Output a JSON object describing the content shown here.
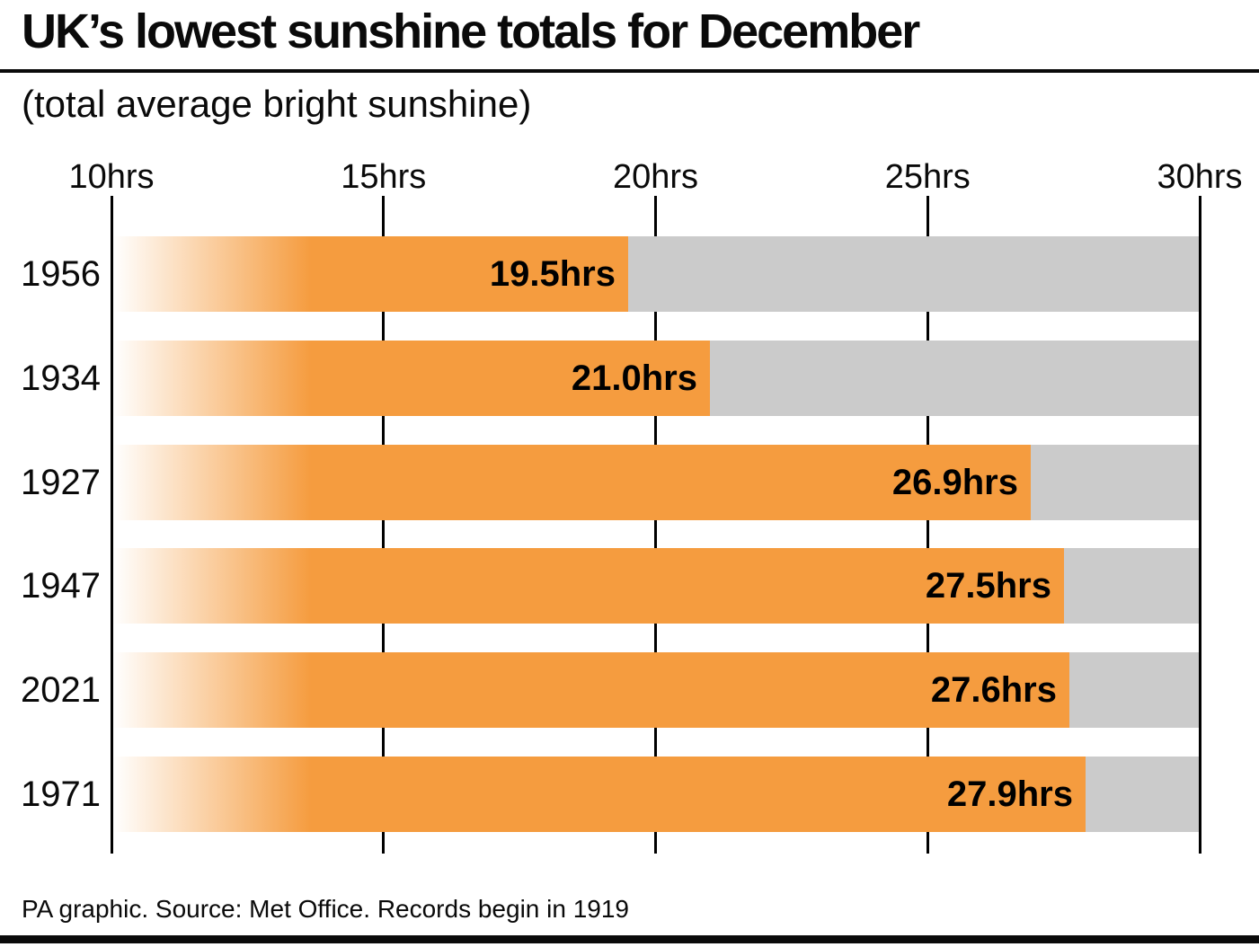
{
  "title": "UK’s lowest sunshine totals for December",
  "subtitle": "(total average bright sunshine)",
  "footer": "PA graphic. Source: Met Office. Records begin in 1919",
  "axis": {
    "tick_labels": [
      "10hrs",
      "15hrs",
      "20hrs",
      "25hrs",
      "30hrs"
    ],
    "tick_values": [
      10,
      15,
      20,
      25,
      30
    ]
  },
  "chart_data": {
    "type": "bar",
    "orientation": "horizontal",
    "title": "UK’s lowest sunshine totals for December",
    "subtitle": "(total average bright sunshine)",
    "categories": [
      "1956",
      "1934",
      "1927",
      "1947",
      "2021",
      "1971"
    ],
    "values": [
      19.5,
      21.0,
      26.9,
      27.5,
      27.6,
      27.9
    ],
    "value_labels": [
      "19.5hrs",
      "21.0hrs",
      "26.9hrs",
      "27.5hrs",
      "27.6hrs",
      "27.9hrs"
    ],
    "xlabel": "",
    "ylabel": "",
    "xlim": [
      10,
      30
    ],
    "grid": "vertical-ticks",
    "legend": "none",
    "unit": "hrs"
  },
  "colors": {
    "bar_orange": "#f59c3f",
    "bar_fade_start": "#ffffff",
    "track_gray": "#cbcbcb",
    "line_black": "#000000",
    "text_black": "#0a0a0a"
  }
}
